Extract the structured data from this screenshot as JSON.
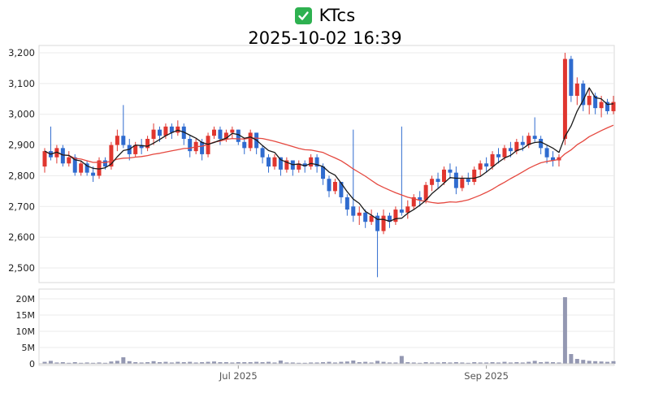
{
  "header": {
    "symbol": "KTcs",
    "datetime": "2025-10-02 16:39",
    "icon": "green-check"
  },
  "chart_data": {
    "type": "candlestick",
    "title": "KTcs",
    "subtitle": "2025-10-02 16:39",
    "legend_position": "none",
    "grid": true,
    "x_ticks": [
      {
        "index": 32,
        "label": "Jul 2025"
      },
      {
        "index": 73,
        "label": "Sep 2025"
      }
    ],
    "price": {
      "ylim": [
        2450,
        3230
      ],
      "ticks": [
        {
          "value": 2500,
          "label": "2,500"
        },
        {
          "value": 2600,
          "label": "2,600"
        },
        {
          "value": 2700,
          "label": "2,700"
        },
        {
          "value": 2800,
          "label": "2,800"
        },
        {
          "value": 2900,
          "label": "2,900"
        },
        {
          "value": 3000,
          "label": "3,000"
        },
        {
          "value": 3100,
          "label": "3,100"
        },
        {
          "value": 3200,
          "label": "3,200"
        }
      ],
      "open": [
        2830,
        2880,
        2860,
        2890,
        2840,
        2860,
        2810,
        2840,
        2810,
        2800,
        2850,
        2830,
        2900,
        2930,
        2900,
        2870,
        2900,
        2890,
        2920,
        2950,
        2930,
        2960,
        2940,
        2960,
        2920,
        2880,
        2910,
        2870,
        2930,
        2950,
        2920,
        2940,
        2950,
        2910,
        2890,
        2940,
        2890,
        2860,
        2830,
        2860,
        2820,
        2850,
        2820,
        2840,
        2830,
        2860,
        2830,
        2790,
        2750,
        2780,
        2730,
        2700,
        2670,
        2680,
        2650,
        2670,
        2620,
        2670,
        2650,
        2690,
        2680,
        2700,
        2730,
        2720,
        2770,
        2790,
        2780,
        2820,
        2810,
        2760,
        2790,
        2780,
        2820,
        2840,
        2830,
        2870,
        2860,
        2890,
        2880,
        2910,
        2900,
        2930,
        2920,
        2890,
        2860,
        2850,
        2920,
        3180,
        3060,
        3100,
        3030,
        3060,
        3020,
        3040,
        3010
      ],
      "high": [
        2890,
        2960,
        2900,
        2900,
        2880,
        2870,
        2850,
        2850,
        2830,
        2860,
        2860,
        2910,
        2950,
        3030,
        2920,
        2910,
        2920,
        2930,
        2970,
        2960,
        2970,
        2970,
        2980,
        2970,
        2930,
        2920,
        2920,
        2940,
        2960,
        2960,
        2950,
        2960,
        2950,
        2920,
        2950,
        2940,
        2900,
        2870,
        2870,
        2860,
        2860,
        2850,
        2850,
        2850,
        2870,
        2870,
        2840,
        2800,
        2790,
        2780,
        2740,
        2950,
        2700,
        2690,
        2690,
        2680,
        2690,
        2680,
        2700,
        2960,
        2720,
        2740,
        2750,
        2780,
        2800,
        2810,
        2830,
        2840,
        2830,
        2800,
        2810,
        2830,
        2850,
        2860,
        2880,
        2890,
        2900,
        2910,
        2920,
        2930,
        2940,
        2990,
        2930,
        2900,
        2880,
        2870,
        3200,
        3190,
        3120,
        3110,
        3080,
        3070,
        3060,
        3050,
        3060
      ],
      "low": [
        2810,
        2850,
        2840,
        2830,
        2830,
        2800,
        2800,
        2800,
        2780,
        2790,
        2820,
        2820,
        2880,
        2890,
        2850,
        2860,
        2870,
        2880,
        2900,
        2910,
        2920,
        2920,
        2930,
        2900,
        2860,
        2870,
        2850,
        2860,
        2920,
        2900,
        2910,
        2920,
        2900,
        2870,
        2880,
        2870,
        2840,
        2810,
        2820,
        2800,
        2810,
        2800,
        2810,
        2810,
        2820,
        2810,
        2770,
        2730,
        2740,
        2710,
        2670,
        2650,
        2640,
        2630,
        2640,
        2470,
        2610,
        2630,
        2640,
        2670,
        2660,
        2690,
        2700,
        2710,
        2750,
        2760,
        2770,
        2790,
        2740,
        2750,
        2770,
        2770,
        2800,
        2810,
        2820,
        2840,
        2850,
        2860,
        2870,
        2880,
        2890,
        2910,
        2870,
        2840,
        2830,
        2830,
        2900,
        3040,
        3030,
        3010,
        3000,
        3000,
        2990,
        3000,
        3000
      ],
      "close": [
        2880,
        2860,
        2890,
        2840,
        2860,
        2810,
        2840,
        2810,
        2800,
        2850,
        2830,
        2900,
        2930,
        2900,
        2870,
        2900,
        2890,
        2920,
        2950,
        2930,
        2960,
        2940,
        2960,
        2920,
        2880,
        2910,
        2870,
        2930,
        2950,
        2920,
        2940,
        2950,
        2910,
        2890,
        2940,
        2890,
        2860,
        2830,
        2860,
        2820,
        2850,
        2820,
        2840,
        2830,
        2860,
        2830,
        2790,
        2750,
        2780,
        2730,
        2690,
        2670,
        2680,
        2650,
        2670,
        2620,
        2670,
        2650,
        2690,
        2680,
        2700,
        2730,
        2720,
        2770,
        2790,
        2780,
        2820,
        2810,
        2760,
        2790,
        2780,
        2820,
        2840,
        2830,
        2870,
        2860,
        2890,
        2880,
        2910,
        2900,
        2930,
        2920,
        2890,
        2860,
        2850,
        2860,
        3180,
        3060,
        3100,
        3030,
        3060,
        3020,
        3040,
        3010,
        3040
      ]
    },
    "moving_averages": [
      {
        "name": "short",
        "window": 5,
        "color": "#1a1a1a"
      },
      {
        "name": "long",
        "window": 20,
        "color": "#e5483f"
      }
    ],
    "volume": {
      "unit": "millions",
      "ylim": [
        0,
        21
      ],
      "ticks": [
        {
          "value": 0,
          "label": "0"
        },
        {
          "value": 5,
          "label": "5M"
        },
        {
          "value": 10,
          "label": "10M"
        },
        {
          "value": 15,
          "label": "15M"
        },
        {
          "value": 20,
          "label": "20M"
        }
      ],
      "values": [
        0.6,
        0.9,
        0.4,
        0.5,
        0.3,
        0.5,
        0.3,
        0.4,
        0.3,
        0.4,
        0.3,
        0.7,
        0.9,
        2.0,
        0.8,
        0.5,
        0.4,
        0.5,
        0.8,
        0.5,
        0.6,
        0.4,
        0.6,
        0.5,
        0.6,
        0.4,
        0.5,
        0.6,
        0.7,
        0.5,
        0.5,
        0.4,
        0.5,
        0.5,
        0.5,
        0.6,
        0.5,
        0.6,
        0.4,
        1.0,
        0.4,
        0.4,
        0.3,
        0.3,
        0.4,
        0.4,
        0.5,
        0.6,
        0.4,
        0.6,
        0.7,
        1.0,
        0.5,
        0.6,
        0.4,
        0.9,
        0.6,
        0.4,
        0.4,
        2.4,
        0.5,
        0.4,
        0.3,
        0.5,
        0.4,
        0.4,
        0.5,
        0.4,
        0.5,
        0.4,
        0.3,
        0.5,
        0.4,
        0.4,
        0.5,
        0.4,
        0.6,
        0.4,
        0.5,
        0.4,
        0.6,
        0.9,
        0.5,
        0.6,
        0.5,
        0.4,
        20.5,
        3.0,
        1.5,
        1.2,
        0.9,
        0.8,
        0.7,
        0.6,
        0.8
      ]
    },
    "colors": {
      "up": "#e0362f",
      "down": "#2f6bcf",
      "volume_bar": "#9498b2",
      "grid": "#ebebeb",
      "border": "#d9d9d9",
      "axis_text": "#222222",
      "x_label_text": "#555555",
      "check_green": "#2eb150"
    }
  }
}
